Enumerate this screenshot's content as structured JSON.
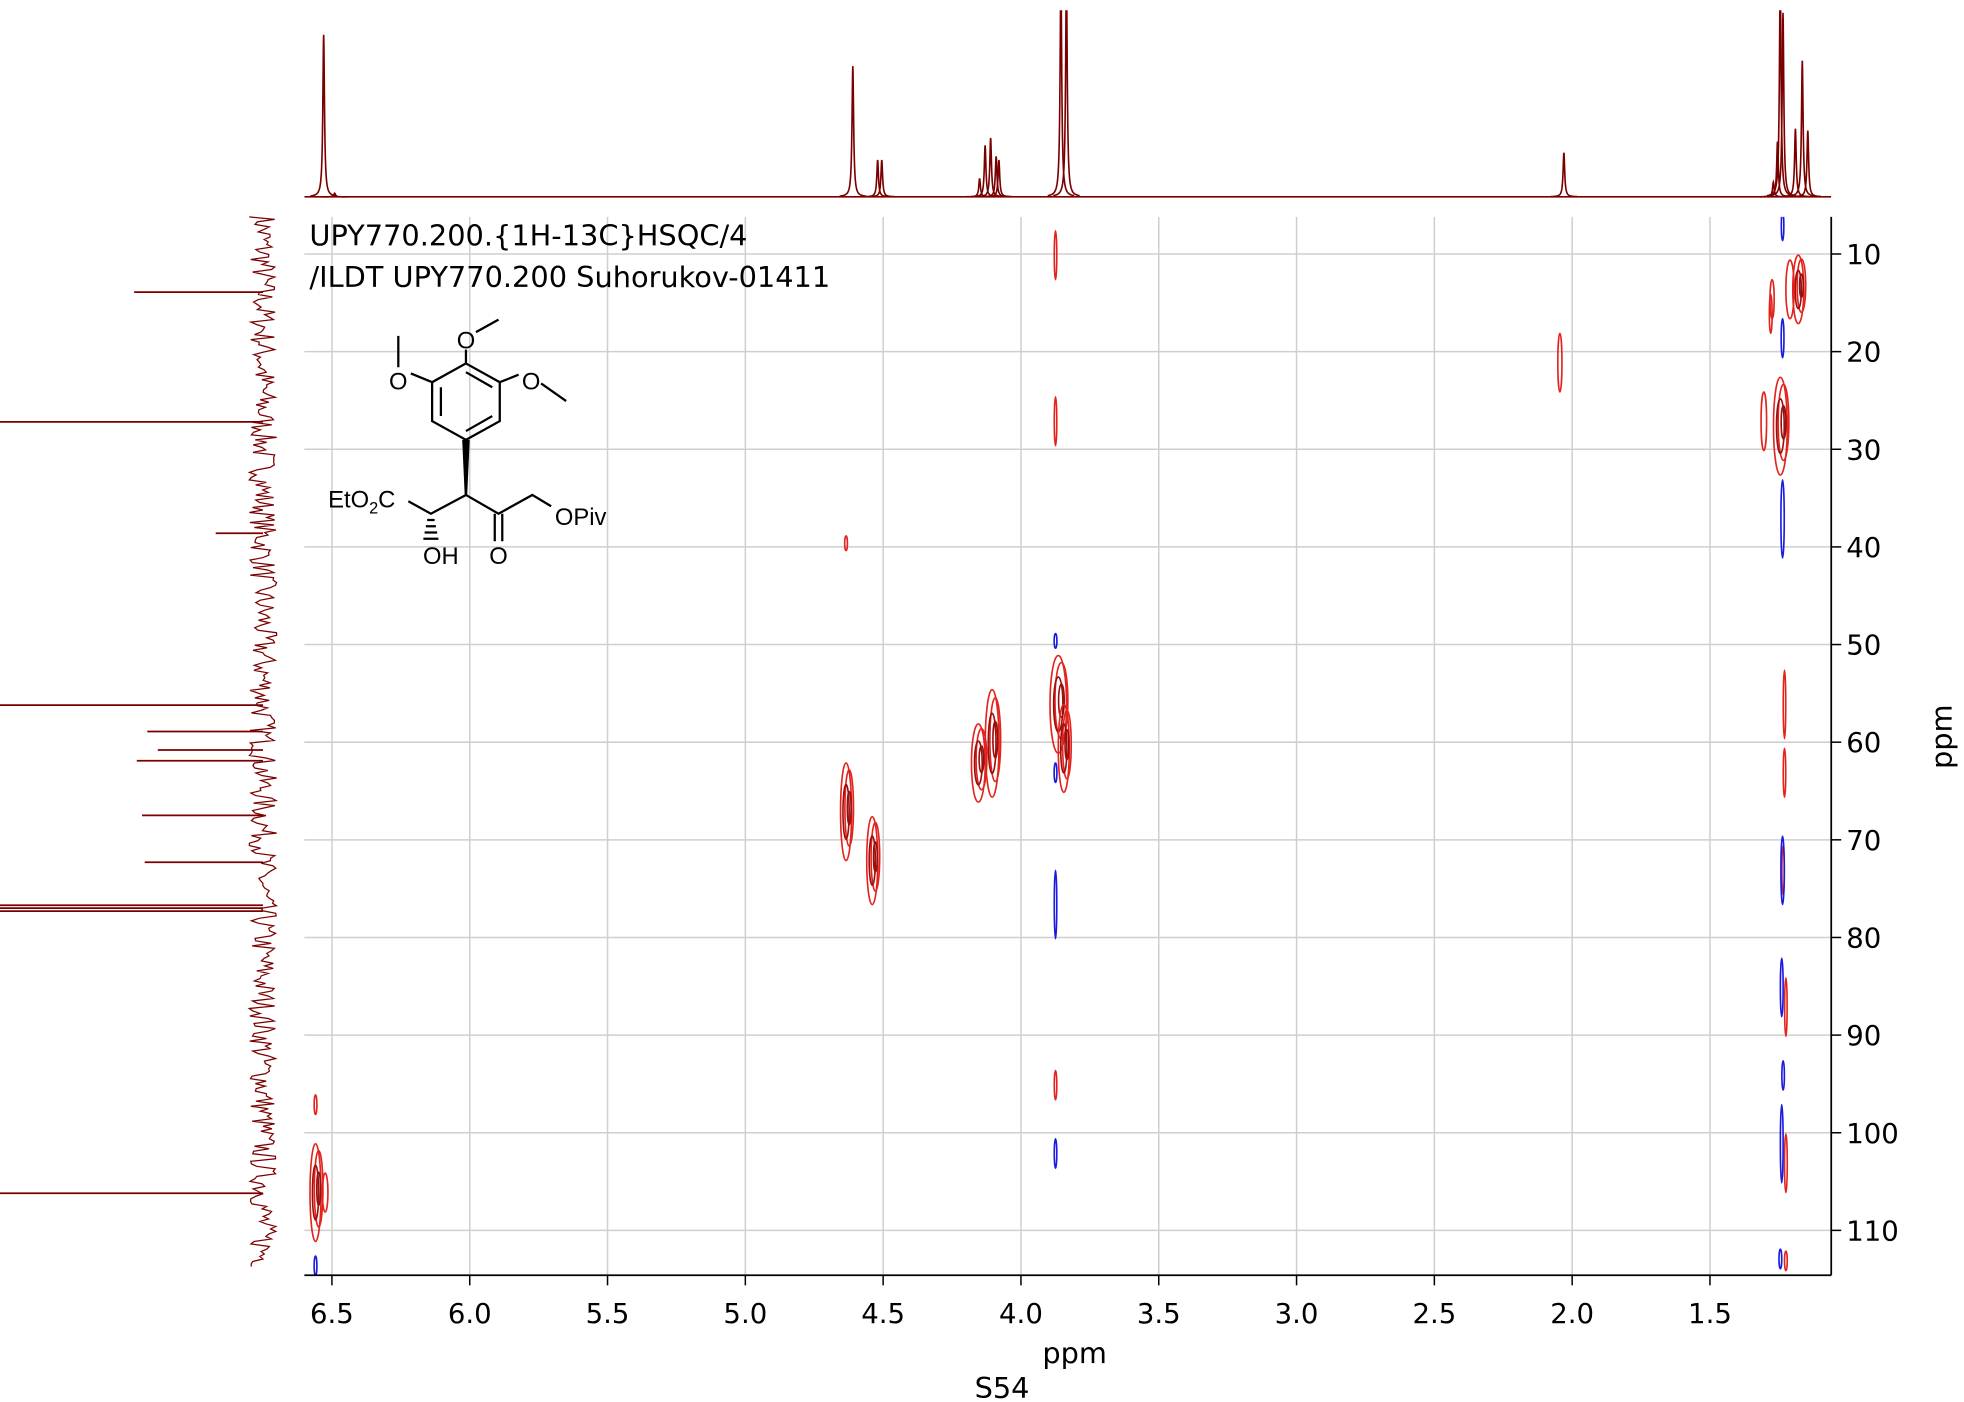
{
  "chart_data": {
    "type": "hsqc",
    "title_lines": [
      "UPY770.200.{1H-13C}HSQC/4",
      "/ILDT UPY770.200 Suhorukov-01411"
    ],
    "xlabel": "ppm",
    "ylabel": "ppm",
    "xlim": [
      6.6,
      1.06
    ],
    "ylim": [
      6.2,
      114.6
    ],
    "xticks": [
      6.5,
      {
        "value": 6,
        "label": "6.0"
      },
      5.5,
      {
        "value": 5,
        "label": "5.0"
      },
      4.5,
      {
        "value": 4,
        "label": "4.0"
      },
      3.5,
      {
        "value": 3,
        "label": "3.0"
      },
      2.5,
      {
        "value": 2,
        "label": "2.0"
      },
      1.5
    ],
    "yticks": [
      10,
      20,
      30,
      40,
      50,
      60,
      70,
      80,
      90,
      100,
      110
    ],
    "grid": true,
    "positive": {
      "color": "#e3231c",
      "x": [
        6.555,
        6.52,
        6.555,
        4.63,
        4.535,
        4.63,
        4.15,
        4.1,
        3.86,
        3.84,
        3.87,
        3.87,
        3.87,
        2.04,
        1.24,
        1.3,
        1.175,
        1.205,
        1.27,
        1.275,
        1.225,
        1.225,
        1.23,
        1.22,
        1.22,
        1.22
      ],
      "y": [
        106,
        106,
        97,
        67,
        72,
        39.5,
        62,
        60,
        56,
        60.5,
        10,
        27,
        95,
        21,
        27.5,
        27,
        13.5,
        13.5,
        14.5,
        16,
        56,
        63,
        73,
        87,
        103,
        113
      ],
      "xwidth": [
        0.04,
        0.02,
        0.01,
        0.04,
        0.04,
        0.01,
        0.05,
        0.05,
        0.06,
        0.04,
        0.008,
        0.008,
        0.008,
        0.015,
        0.05,
        0.02,
        0.04,
        0.03,
        0.015,
        0.01,
        0.008,
        0.008,
        0.008,
        0.008,
        0.01,
        0.01
      ],
      "ywidth": [
        10,
        4,
        2,
        10,
        9,
        1.5,
        8,
        11,
        10,
        9,
        5,
        5,
        3,
        6,
        10,
        6,
        7,
        6,
        4,
        4,
        7,
        5,
        5,
        6,
        6,
        2
      ]
    },
    "negative": {
      "color": "#1a1ae0",
      "x": [
        6.555,
        3.87,
        3.87,
        3.87,
        3.87,
        1.232,
        1.232,
        1.232,
        1.232,
        1.235,
        1.23,
        1.235,
        1.24
      ],
      "y": [
        113.5,
        63,
        49.5,
        76.5,
        102,
        7,
        18.5,
        37,
        73,
        85,
        94,
        101,
        112.8
      ],
      "xwidth": [
        0.01,
        0.01,
        0.01,
        0.006,
        0.006,
        0.008,
        0.01,
        0.012,
        0.012,
        0.01,
        0.006,
        0.01,
        0.01
      ],
      "ywidth": [
        2,
        2,
        1.5,
        7,
        3,
        3,
        4,
        8,
        7,
        6,
        3,
        8,
        2
      ]
    },
    "top_projection": {
      "color": "#7a0000",
      "x": [
        6.53,
        6.49,
        4.61,
        4.52,
        4.505,
        4.15,
        4.13,
        4.11,
        4.09,
        4.08,
        3.855,
        3.835,
        2.03,
        1.27,
        1.255,
        1.245,
        1.235,
        1.19,
        1.165,
        1.145
      ],
      "intensity": [
        0.88,
        0.02,
        0.71,
        0.2,
        0.2,
        0.1,
        0.28,
        0.32,
        0.22,
        0.2,
        1.2,
        1.2,
        0.24,
        0.08,
        0.3,
        1.2,
        1.0,
        0.37,
        0.74,
        0.36
      ]
    },
    "left_projection": {
      "color": "#7a0000",
      "y": [
        13.9,
        27.2,
        38.6,
        56.2,
        58.9,
        60.8,
        61.9,
        67.5,
        72.3,
        76.7,
        77.0,
        77.3,
        106.2
      ],
      "intensity": [
        0.49,
        1.0,
        0.18,
        1.0,
        0.44,
        0.4,
        0.48,
        0.46,
        0.45,
        1.0,
        1.0,
        1.0,
        1.0
      ]
    }
  },
  "structure": {
    "labels": [
      "O",
      "O",
      "O",
      "EtO",
      "2",
      "C",
      "OH",
      "O",
      "OPiv"
    ]
  },
  "page_label": "S54"
}
